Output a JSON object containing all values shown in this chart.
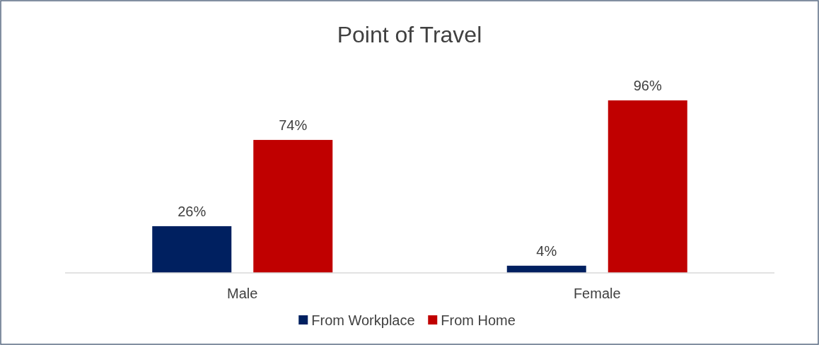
{
  "chart_data": {
    "type": "bar",
    "title": "Point of Travel",
    "categories": [
      "Male",
      "Female"
    ],
    "series": [
      {
        "name": "From Workplace",
        "color": "#002060",
        "values": [
          26,
          4
        ],
        "value_labels": [
          "26%",
          "4%"
        ]
      },
      {
        "name": "From Home",
        "color": "#c00000",
        "values": [
          74,
          96
        ],
        "value_labels": [
          "74%",
          "96%"
        ]
      }
    ],
    "legend": "bottom",
    "grid": false
  }
}
